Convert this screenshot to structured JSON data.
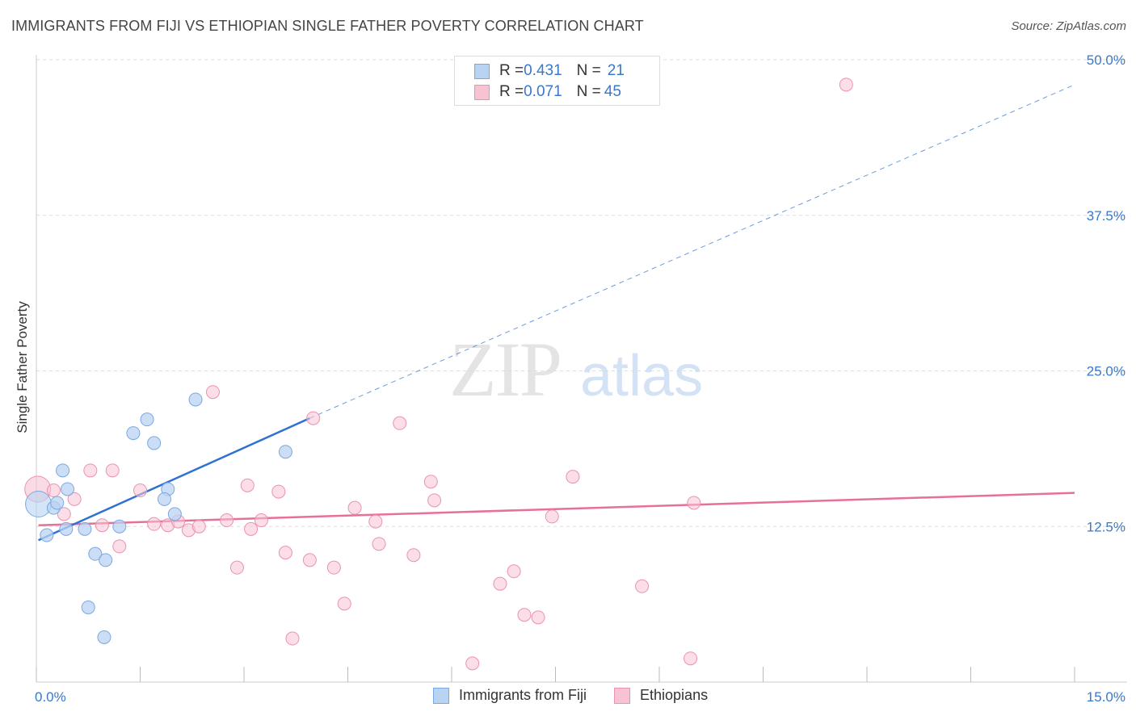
{
  "header": {
    "title": "IMMIGRANTS FROM FIJI VS ETHIOPIAN SINGLE FATHER POVERTY CORRELATION CHART",
    "source": "Source: ZipAtlas.com"
  },
  "legend_top": {
    "rows": [
      {
        "r_label": "R = ",
        "r_value": "0.431",
        "n_label": "N = ",
        "n_value": "21"
      },
      {
        "r_label": "R = ",
        "r_value": "0.071",
        "n_label": "N = ",
        "n_value": "45"
      }
    ]
  },
  "watermark": {
    "zip": "ZIP",
    "atlas": "atlas"
  },
  "colors": {
    "fiji_fill": "#b9d3f3",
    "fiji_stroke": "#7aa8e0",
    "fiji_line": "#2f72d0",
    "eth_fill": "#f7c3d3",
    "eth_stroke": "#ea92b0",
    "eth_line": "#e76f98",
    "tick_label": "#3a78c9",
    "grid": "#dddddd"
  },
  "chart_data": {
    "type": "scatter",
    "title": "IMMIGRANTS FROM FIJI VS ETHIOPIAN SINGLE FATHER POVERTY CORRELATION CHART",
    "xlabel": "",
    "ylabel": "Single Father Poverty",
    "xlim": [
      0,
      15
    ],
    "ylim": [
      0,
      50
    ],
    "x_tick_labels": [
      {
        "value": 0,
        "label": "0.0%"
      },
      {
        "value": 15,
        "label": "15.0%"
      }
    ],
    "y_tick_labels": [
      {
        "value": 12.5,
        "label": "12.5%"
      },
      {
        "value": 25,
        "label": "25.0%"
      },
      {
        "value": 37.5,
        "label": "37.5%"
      },
      {
        "value": 50,
        "label": "50.0%"
      }
    ],
    "series": [
      {
        "name": "Immigrants from Fiji",
        "points": [
          {
            "x": 0.03,
            "y": 14.3,
            "big": true
          },
          {
            "x": 0.15,
            "y": 11.8
          },
          {
            "x": 0.25,
            "y": 14.0
          },
          {
            "x": 0.3,
            "y": 14.4
          },
          {
            "x": 0.38,
            "y": 17.0
          },
          {
            "x": 0.45,
            "y": 15.5
          },
          {
            "x": 0.43,
            "y": 12.3
          },
          {
            "x": 0.7,
            "y": 12.3
          },
          {
            "x": 0.85,
            "y": 10.3
          },
          {
            "x": 1.0,
            "y": 9.8
          },
          {
            "x": 0.75,
            "y": 6.0
          },
          {
            "x": 0.98,
            "y": 3.6
          },
          {
            "x": 1.2,
            "y": 12.5
          },
          {
            "x": 1.4,
            "y": 20.0
          },
          {
            "x": 1.6,
            "y": 21.1
          },
          {
            "x": 1.7,
            "y": 19.2
          },
          {
            "x": 1.9,
            "y": 15.5
          },
          {
            "x": 1.85,
            "y": 14.7
          },
          {
            "x": 2.0,
            "y": 13.5
          },
          {
            "x": 2.3,
            "y": 22.7
          },
          {
            "x": 3.6,
            "y": 18.5
          }
        ],
        "trend": {
          "x0": 0.03,
          "y0": 11.4,
          "x1": 3.95,
          "y1": 21.2,
          "dashed_to_x": 15.0,
          "dashed_to_y": 48.0
        }
      },
      {
        "name": "Ethiopians",
        "points": [
          {
            "x": 0.02,
            "y": 15.5,
            "big": true
          },
          {
            "x": 0.25,
            "y": 15.4
          },
          {
            "x": 0.4,
            "y": 13.5
          },
          {
            "x": 0.55,
            "y": 14.7
          },
          {
            "x": 0.78,
            "y": 17.0
          },
          {
            "x": 1.1,
            "y": 17.0
          },
          {
            "x": 0.95,
            "y": 12.6
          },
          {
            "x": 1.2,
            "y": 10.9
          },
          {
            "x": 1.5,
            "y": 15.4
          },
          {
            "x": 1.7,
            "y": 12.7
          },
          {
            "x": 1.9,
            "y": 12.6
          },
          {
            "x": 2.05,
            "y": 12.9
          },
          {
            "x": 2.2,
            "y": 12.2
          },
          {
            "x": 2.35,
            "y": 12.5
          },
          {
            "x": 2.55,
            "y": 23.3
          },
          {
            "x": 2.75,
            "y": 13.0
          },
          {
            "x": 2.9,
            "y": 9.2
          },
          {
            "x": 3.05,
            "y": 15.8
          },
          {
            "x": 3.1,
            "y": 12.3
          },
          {
            "x": 3.25,
            "y": 13.0
          },
          {
            "x": 3.5,
            "y": 15.3
          },
          {
            "x": 3.6,
            "y": 10.4
          },
          {
            "x": 3.7,
            "y": 3.5
          },
          {
            "x": 3.95,
            "y": 9.8
          },
          {
            "x": 4.0,
            "y": 21.2
          },
          {
            "x": 4.3,
            "y": 9.2
          },
          {
            "x": 4.45,
            "y": 6.3
          },
          {
            "x": 4.6,
            "y": 14.0
          },
          {
            "x": 4.9,
            "y": 12.9
          },
          {
            "x": 4.95,
            "y": 11.1
          },
          {
            "x": 5.25,
            "y": 20.8
          },
          {
            "x": 5.45,
            "y": 10.2
          },
          {
            "x": 5.7,
            "y": 16.1
          },
          {
            "x": 5.75,
            "y": 14.6
          },
          {
            "x": 6.3,
            "y": 1.5
          },
          {
            "x": 6.7,
            "y": 7.9
          },
          {
            "x": 6.9,
            "y": 8.9
          },
          {
            "x": 7.05,
            "y": 5.4
          },
          {
            "x": 7.25,
            "y": 5.2
          },
          {
            "x": 7.45,
            "y": 13.3
          },
          {
            "x": 7.75,
            "y": 16.5
          },
          {
            "x": 8.75,
            "y": 7.7
          },
          {
            "x": 9.45,
            "y": 1.9
          },
          {
            "x": 9.5,
            "y": 14.4
          },
          {
            "x": 11.7,
            "y": 48.0
          }
        ],
        "trend": {
          "x0": 0.03,
          "y0": 12.6,
          "x1": 15.0,
          "y1": 15.2
        }
      }
    ]
  },
  "legend_bottom": {
    "items": [
      {
        "label": "Immigrants from Fiji"
      },
      {
        "label": "Ethiopians"
      }
    ]
  }
}
